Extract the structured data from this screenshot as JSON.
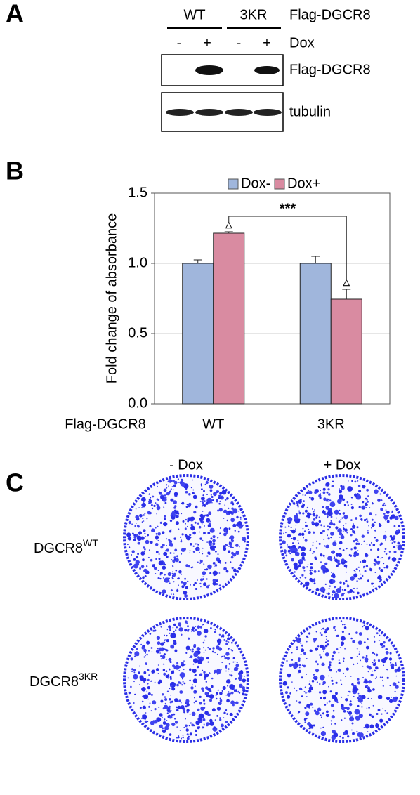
{
  "panel_a": {
    "label": "A",
    "groups": [
      "WT",
      "3KR"
    ],
    "group_caption": "Flag-DGCR8",
    "dox_signs": [
      "-",
      "+",
      "-",
      "+"
    ],
    "dox_caption": "Dox",
    "blots": [
      "Flag-DGCR8",
      "tubulin"
    ]
  },
  "chart_data": {
    "type": "bar",
    "panel_label": "B",
    "y_title": "Fold change of absorbance",
    "x_title": "Flag-DGCR8",
    "categories": [
      "WT",
      "3KR"
    ],
    "series": [
      {
        "name": "Dox-",
        "color": "#a0b6dc",
        "values": [
          1.0,
          1.0
        ],
        "errors": [
          0.025,
          0.05
        ]
      },
      {
        "name": "Dox+",
        "color": "#d98ba1",
        "values": [
          1.215,
          0.745
        ],
        "errors": [
          0.01,
          0.07
        ]
      }
    ],
    "ylim": [
      0,
      1.5
    ],
    "yticks": [
      {
        "value": 0,
        "label": "0.0"
      },
      {
        "value": 0.5,
        "label": "0.5"
      },
      {
        "value": 1,
        "label": "1.0"
      },
      {
        "value": 1.5,
        "label": "1.5"
      }
    ],
    "grid": true,
    "legend": "top",
    "significance": "***",
    "marker": "▵"
  },
  "panel_c": {
    "label": "C",
    "columns": [
      "- Dox",
      "+ Dox"
    ],
    "rows": [
      {
        "name": "DGCR8",
        "superscript": "WT"
      },
      {
        "name": "DGCR8",
        "superscript": "3KR"
      }
    ]
  }
}
